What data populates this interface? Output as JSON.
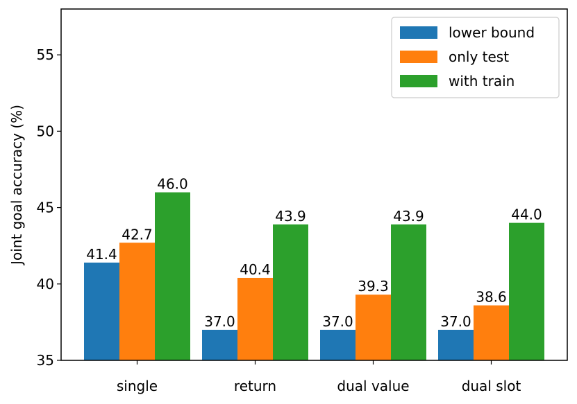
{
  "chart_data": {
    "type": "bar",
    "categories": [
      "single",
      "return",
      "dual value",
      "dual slot"
    ],
    "series": [
      {
        "name": "lower bound",
        "color": "#1f77b4",
        "values": [
          41.4,
          37.0,
          37.0,
          37.0
        ]
      },
      {
        "name": "only test",
        "color": "#ff7f0e",
        "values": [
          42.7,
          40.4,
          39.3,
          38.6
        ]
      },
      {
        "name": "with train",
        "color": "#2ca02c",
        "values": [
          46.0,
          43.9,
          43.9,
          44.0
        ]
      }
    ],
    "ylabel": "Joint goal accuracy (%)",
    "xlabel": "",
    "title": "",
    "ylim": [
      35,
      58
    ],
    "yticks": [
      35,
      40,
      45,
      50,
      55
    ],
    "value_format_decimals": 1,
    "legend_position": "top-right",
    "grid": false
  }
}
